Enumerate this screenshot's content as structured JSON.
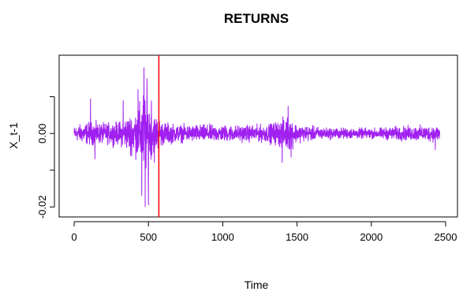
{
  "chart_data": {
    "type": "line",
    "title": "RETURNS",
    "xlabel": "Time",
    "ylabel": "X_t-1",
    "xlim": [
      0,
      2500
    ],
    "ylim": [
      -0.021,
      0.02
    ],
    "x_ticks": [
      0,
      500,
      1000,
      1500,
      2000,
      2500
    ],
    "y_ticks": [
      -0.02,
      0.0
    ],
    "y_tick_labels": [
      "-0.02",
      "0.00"
    ],
    "y_minor_ticks": [
      -0.01,
      0.01
    ],
    "grid": false,
    "vertical_line": {
      "x": 570,
      "color": "#ff0000"
    },
    "series": [
      {
        "color": "#a020f0",
        "n_points": 2460,
        "envelope": [
          {
            "x": 0,
            "amp": 0.0025
          },
          {
            "x": 100,
            "amp": 0.004
          },
          {
            "x": 200,
            "amp": 0.0035
          },
          {
            "x": 300,
            "amp": 0.004
          },
          {
            "x": 400,
            "amp": 0.007
          },
          {
            "x": 440,
            "amp": 0.01
          },
          {
            "x": 470,
            "amp": 0.016
          },
          {
            "x": 500,
            "amp": 0.012
          },
          {
            "x": 530,
            "amp": 0.007
          },
          {
            "x": 600,
            "amp": 0.004
          },
          {
            "x": 700,
            "amp": 0.003
          },
          {
            "x": 900,
            "amp": 0.003
          },
          {
            "x": 1100,
            "amp": 0.0028
          },
          {
            "x": 1300,
            "amp": 0.003
          },
          {
            "x": 1400,
            "amp": 0.005
          },
          {
            "x": 1450,
            "amp": 0.006
          },
          {
            "x": 1500,
            "amp": 0.003
          },
          {
            "x": 1700,
            "amp": 0.002
          },
          {
            "x": 2000,
            "amp": 0.0018
          },
          {
            "x": 2200,
            "amp": 0.0025
          },
          {
            "x": 2460,
            "amp": 0.0028
          }
        ],
        "spikes": [
          {
            "x": 110,
            "value": 0.0095
          },
          {
            "x": 140,
            "value": -0.007
          },
          {
            "x": 330,
            "value": 0.009
          },
          {
            "x": 380,
            "value": -0.006
          },
          {
            "x": 430,
            "value": 0.012
          },
          {
            "x": 455,
            "value": -0.017
          },
          {
            "x": 470,
            "value": 0.018
          },
          {
            "x": 478,
            "value": -0.02
          },
          {
            "x": 490,
            "value": 0.015
          },
          {
            "x": 500,
            "value": -0.0195
          },
          {
            "x": 520,
            "value": 0.009
          },
          {
            "x": 540,
            "value": -0.008
          },
          {
            "x": 1400,
            "value": -0.008
          },
          {
            "x": 1440,
            "value": 0.0075
          },
          {
            "x": 1460,
            "value": -0.0065
          },
          {
            "x": 2430,
            "value": -0.0045
          }
        ]
      }
    ]
  }
}
